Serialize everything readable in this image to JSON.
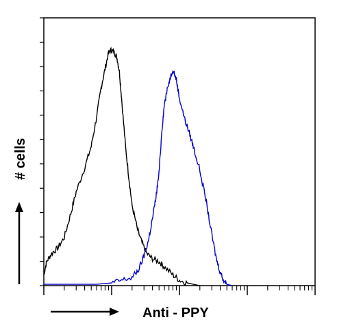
{
  "chart_data": {
    "type": "line",
    "title": "",
    "xlabel": "Anti - PPY",
    "ylabel": "# cells",
    "x_scale": "log",
    "xlim": [
      1,
      10000
    ],
    "ylim": [
      0,
      100
    ],
    "grid": false,
    "legend": "none",
    "series": [
      {
        "color": "#000000",
        "x": [
          1,
          1.1,
          1.3,
          1.6,
          2,
          2.5,
          3,
          4,
          5,
          6,
          7,
          8,
          9,
          10,
          11,
          12,
          13,
          14,
          16,
          18,
          20,
          24,
          28,
          33,
          40,
          50,
          60,
          80,
          100,
          130,
          160,
          200
        ],
        "y": [
          4,
          9,
          12,
          14,
          18,
          27,
          35,
          44,
          52,
          63,
          74,
          81,
          87,
          88,
          87,
          85,
          80,
          70,
          52,
          40,
          30,
          21,
          16,
          12,
          10,
          9,
          7,
          4,
          2,
          1,
          0.5,
          0
        ]
      },
      {
        "color": "#0000cc",
        "x": [
          1,
          3,
          6,
          10,
          14,
          20,
          25,
          30,
          35,
          40,
          45,
          50,
          55,
          60,
          70,
          80,
          90,
          100,
          120,
          140,
          160,
          200,
          250,
          300,
          350,
          400,
          450,
          500,
          600
        ],
        "y": [
          0.5,
          0.5,
          0.5,
          1,
          2,
          3,
          6,
          11,
          17,
          25,
          33,
          42,
          58,
          68,
          76,
          81,
          77,
          70,
          62,
          57,
          52,
          43,
          31,
          19,
          10,
          5,
          2,
          0.5,
          0
        ]
      }
    ]
  }
}
